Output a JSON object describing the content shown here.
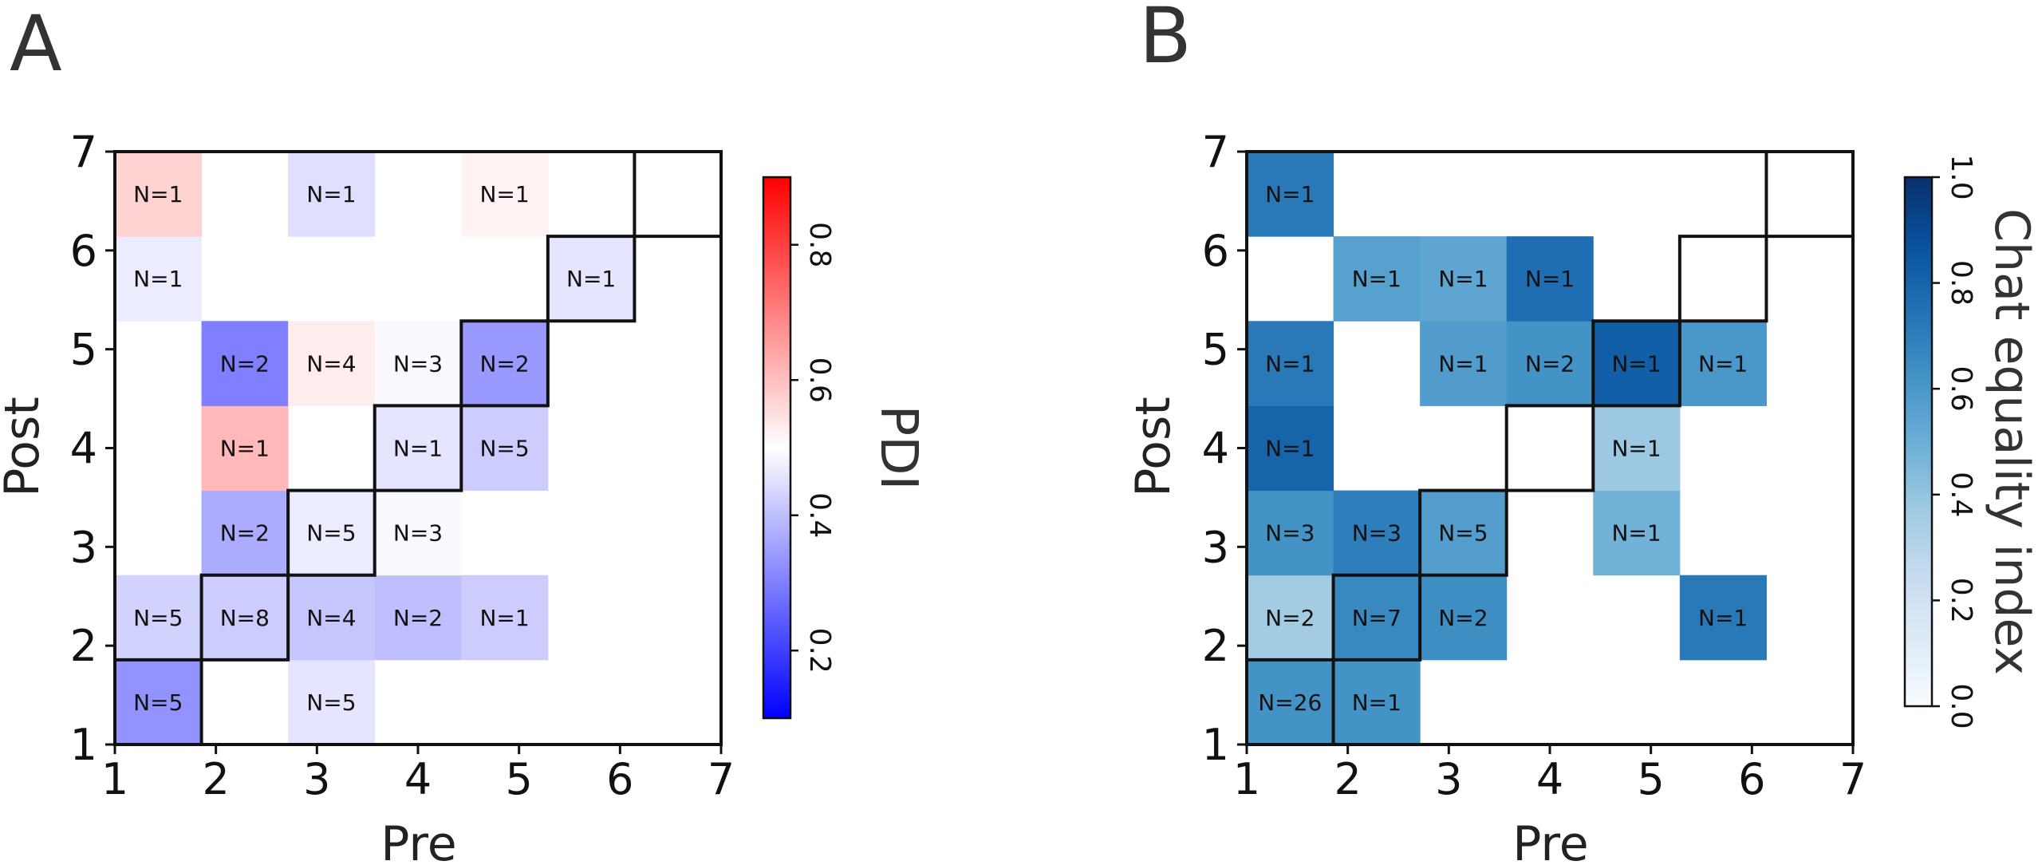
{
  "chart_data": [
    {
      "panel_label": "A",
      "type": "heatmap",
      "xlabel": "Pre",
      "ylabel": "Post",
      "x_ticks": [
        "1",
        "2",
        "3",
        "4",
        "5",
        "6",
        "7"
      ],
      "y_ticks": [
        "1",
        "2",
        "3",
        "4",
        "5",
        "6",
        "7"
      ],
      "xlim": [
        1,
        7
      ],
      "ylim": [
        1,
        7
      ],
      "grid_size": 7,
      "colormap": "bwr",
      "colorbar": {
        "label": "PDI",
        "range": [
          0.1,
          0.9
        ],
        "ticks": [
          "0.2",
          "0.4",
          "0.6",
          "0.8"
        ],
        "tick_values": [
          0.2,
          0.4,
          0.6,
          0.8
        ],
        "colors": [
          "#0000ff",
          "#ffffff",
          "#ff0000"
        ]
      },
      "cells": [
        {
          "pre": 1,
          "post": 1,
          "value": 0.33,
          "label": "N=5"
        },
        {
          "pre": 3,
          "post": 1,
          "value": 0.46,
          "label": "N=5"
        },
        {
          "pre": 1,
          "post": 2,
          "value": 0.43,
          "label": "N=5"
        },
        {
          "pre": 2,
          "post": 2,
          "value": 0.42,
          "label": "N=8"
        },
        {
          "pre": 3,
          "post": 2,
          "value": 0.41,
          "label": "N=4"
        },
        {
          "pre": 4,
          "post": 2,
          "value": 0.4,
          "label": "N=2"
        },
        {
          "pre": 5,
          "post": 2,
          "value": 0.42,
          "label": "N=1"
        },
        {
          "pre": 2,
          "post": 3,
          "value": 0.37,
          "label": "N=2"
        },
        {
          "pre": 3,
          "post": 3,
          "value": 0.47,
          "label": "N=5"
        },
        {
          "pre": 4,
          "post": 3,
          "value": 0.49,
          "label": "N=3"
        },
        {
          "pre": 2,
          "post": 4,
          "value": 0.61,
          "label": "N=1"
        },
        {
          "pre": 4,
          "post": 4,
          "value": 0.46,
          "label": "N=1"
        },
        {
          "pre": 5,
          "post": 4,
          "value": 0.42,
          "label": "N=5"
        },
        {
          "pre": 2,
          "post": 5,
          "value": 0.3,
          "label": "N=2"
        },
        {
          "pre": 3,
          "post": 5,
          "value": 0.53,
          "label": "N=4"
        },
        {
          "pre": 4,
          "post": 5,
          "value": 0.49,
          "label": "N=3"
        },
        {
          "pre": 5,
          "post": 5,
          "value": 0.34,
          "label": "N=2"
        },
        {
          "pre": 1,
          "post": 6,
          "value": 0.47,
          "label": "N=1"
        },
        {
          "pre": 6,
          "post": 6,
          "value": 0.46,
          "label": "N=1"
        },
        {
          "pre": 1,
          "post": 7,
          "value": 0.57,
          "label": "N=1"
        },
        {
          "pre": 3,
          "post": 7,
          "value": 0.45,
          "label": "N=1"
        },
        {
          "pre": 5,
          "post": 7,
          "value": 0.52,
          "label": "N=1"
        }
      ]
    },
    {
      "panel_label": "B",
      "type": "heatmap",
      "xlabel": "Pre",
      "ylabel": "Post",
      "x_ticks": [
        "1",
        "2",
        "3",
        "4",
        "5",
        "6",
        "7"
      ],
      "y_ticks": [
        "1",
        "2",
        "3",
        "4",
        "5",
        "6",
        "7"
      ],
      "xlim": [
        1,
        7
      ],
      "ylim": [
        1,
        7
      ],
      "grid_size": 7,
      "colormap": "Blues",
      "colorbar": {
        "label": "Chat equality index",
        "range": [
          0.0,
          1.0
        ],
        "ticks": [
          "0.0",
          "0.2",
          "0.4",
          "0.6",
          "0.8",
          "1.0"
        ],
        "tick_values": [
          0.0,
          0.2,
          0.4,
          0.6,
          0.8,
          1.0
        ],
        "colors": [
          "#f7fbff",
          "#deebf7",
          "#c6dbef",
          "#9ecae1",
          "#6baed6",
          "#4292c6",
          "#2171b5",
          "#08519c",
          "#08306b"
        ]
      },
      "cells": [
        {
          "pre": 1,
          "post": 1,
          "value": 0.62,
          "label": "N=26"
        },
        {
          "pre": 2,
          "post": 1,
          "value": 0.62,
          "label": "N=1"
        },
        {
          "pre": 1,
          "post": 2,
          "value": 0.36,
          "label": "N=2"
        },
        {
          "pre": 2,
          "post": 2,
          "value": 0.66,
          "label": "N=7"
        },
        {
          "pre": 3,
          "post": 2,
          "value": 0.64,
          "label": "N=2"
        },
        {
          "pre": 6,
          "post": 2,
          "value": 0.72,
          "label": "N=1"
        },
        {
          "pre": 1,
          "post": 3,
          "value": 0.62,
          "label": "N=3"
        },
        {
          "pre": 2,
          "post": 3,
          "value": 0.7,
          "label": "N=3"
        },
        {
          "pre": 3,
          "post": 3,
          "value": 0.57,
          "label": "N=5"
        },
        {
          "pre": 5,
          "post": 3,
          "value": 0.48,
          "label": "N=1"
        },
        {
          "pre": 1,
          "post": 4,
          "value": 0.8,
          "label": "N=1"
        },
        {
          "pre": 5,
          "post": 4,
          "value": 0.38,
          "label": "N=1"
        },
        {
          "pre": 1,
          "post": 5,
          "value": 0.72,
          "label": "N=1"
        },
        {
          "pre": 3,
          "post": 5,
          "value": 0.58,
          "label": "N=1"
        },
        {
          "pre": 4,
          "post": 5,
          "value": 0.62,
          "label": "N=2"
        },
        {
          "pre": 5,
          "post": 5,
          "value": 0.82,
          "label": "N=1"
        },
        {
          "pre": 6,
          "post": 5,
          "value": 0.6,
          "label": "N=1"
        },
        {
          "pre": 2,
          "post": 6,
          "value": 0.56,
          "label": "N=1"
        },
        {
          "pre": 3,
          "post": 6,
          "value": 0.54,
          "label": "N=1"
        },
        {
          "pre": 4,
          "post": 6,
          "value": 0.76,
          "label": "N=1"
        },
        {
          "pre": 1,
          "post": 7,
          "value": 0.72,
          "label": "N=1"
        }
      ]
    }
  ]
}
